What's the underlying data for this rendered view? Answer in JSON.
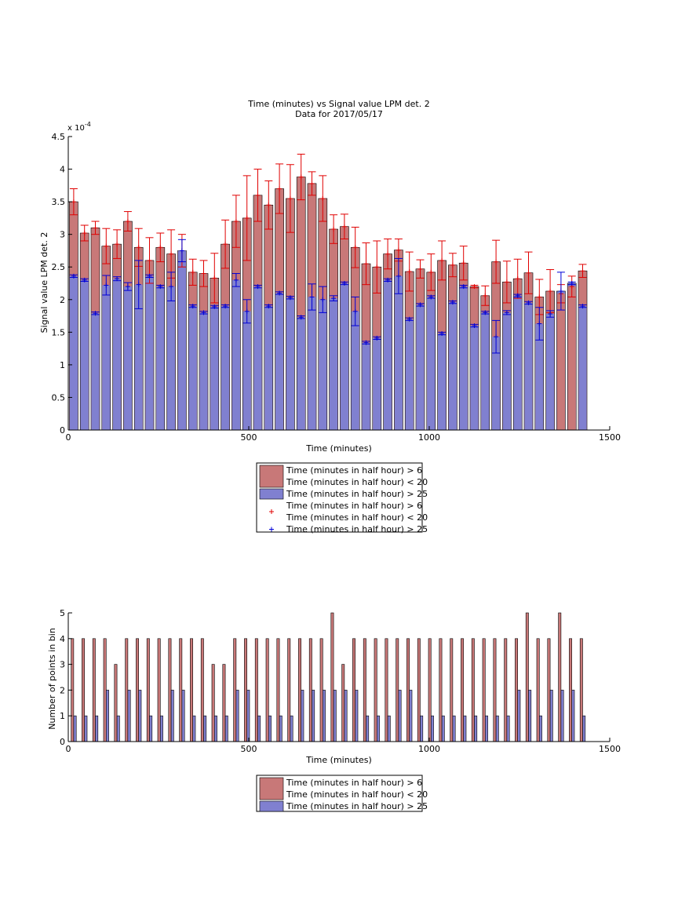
{
  "chart_data": [
    {
      "type": "bar",
      "title": "Time (minutes) vs Signal value LPM det. 2",
      "subtitle": "Data for 2017/05/17",
      "xlabel": "Time (minutes)",
      "ylabel": "Signal value LPM det. 2",
      "y_exponent_label": "x 10",
      "y_exponent": "-4",
      "xlim": [
        0,
        1500
      ],
      "ylim": [
        0,
        4.5
      ],
      "xticks": [
        0,
        500,
        1000,
        1500
      ],
      "yticks": [
        0,
        0.5,
        1,
        1.5,
        2,
        2.5,
        3,
        3.5,
        4,
        4.5
      ],
      "ytick_labels": [
        "0",
        "0.5",
        "1",
        "1.5",
        "2",
        "2.5",
        "3",
        "3.5",
        "4",
        "4.5"
      ],
      "grid": false,
      "legend_position": "below",
      "legend": [
        {
          "label_lines": [
            "Time (minutes in half hour) > 6",
            "Time (minutes in half hour) < 20"
          ],
          "marker": "red-bar"
        },
        {
          "label_lines": [
            "Time (minutes in half hour) > 25"
          ],
          "marker": "blue-bar"
        },
        {
          "label_lines": [
            "Time (minutes in half hour) > 6",
            "Time (minutes in half hour) < 20"
          ],
          "marker": "red-plus"
        },
        {
          "label_lines": [
            "Time (minutes in half hour) > 25"
          ],
          "marker": "blue-plus"
        }
      ],
      "x": [
        15,
        45,
        75,
        105,
        135,
        165,
        195,
        225,
        255,
        285,
        315,
        345,
        375,
        405,
        435,
        465,
        495,
        525,
        555,
        585,
        615,
        645,
        675,
        705,
        735,
        765,
        795,
        825,
        855,
        885,
        915,
        945,
        975,
        1005,
        1035,
        1065,
        1095,
        1125,
        1155,
        1185,
        1215,
        1245,
        1275,
        1305,
        1335,
        1365,
        1395,
        1425
      ],
      "series": [
        {
          "name": "Time (minutes in half hour) > 6 / Time (minutes in half hour) < 20",
          "color": "#c87878",
          "values": [
            3.5,
            3.02,
            3.1,
            2.82,
            2.85,
            3.2,
            2.8,
            2.6,
            2.8,
            2.7,
            2.75,
            2.42,
            2.4,
            2.33,
            2.85,
            3.2,
            3.25,
            3.6,
            3.45,
            3.7,
            3.55,
            3.88,
            3.78,
            3.55,
            3.08,
            3.12,
            2.8,
            2.55,
            2.5,
            2.7,
            2.76,
            2.43,
            2.47,
            2.42,
            2.6,
            2.53,
            2.56,
            2.2,
            2.06,
            2.58,
            2.27,
            2.32,
            2.41,
            2.04,
            2.13,
            2.09,
            2.2,
            2.44
          ],
          "error": [
            0.2,
            0.12,
            0.1,
            0.27,
            0.22,
            0.15,
            0.29,
            0.35,
            0.22,
            0.37,
            0.25,
            0.2,
            0.2,
            0.38,
            0.37,
            0.4,
            0.65,
            0.4,
            0.37,
            0.38,
            0.52,
            0.35,
            0.18,
            0.35,
            0.22,
            0.19,
            0.31,
            0.32,
            0.4,
            0.23,
            0.17,
            0.3,
            0.14,
            0.28,
            0.3,
            0.18,
            0.26,
            0.02,
            0.15,
            0.33,
            0.32,
            0.3,
            0.32,
            0.27,
            0.33,
            0.14,
            0.16,
            0.1
          ]
        },
        {
          "name": "Time (minutes in half hour) > 25",
          "color": "#8080d0",
          "values": [
            2.36,
            2.3,
            1.79,
            2.22,
            2.32,
            2.2,
            2.23,
            2.36,
            2.2,
            2.2,
            2.75,
            1.9,
            1.8,
            1.89,
            1.9,
            2.3,
            1.82,
            2.2,
            1.9,
            2.1,
            2.03,
            1.73,
            2.04,
            2.0,
            2.02,
            2.25,
            1.82,
            1.34,
            1.41,
            2.3,
            2.36,
            1.7,
            1.92,
            2.04,
            1.48,
            1.96,
            2.2,
            1.6,
            1.8,
            1.43,
            1.8,
            2.06,
            1.95,
            1.63,
            1.78,
            2.13,
            2.25,
            1.9
          ],
          "error": [
            0.02,
            0.02,
            0.02,
            0.15,
            0.03,
            0.06,
            0.37,
            0.02,
            0.02,
            0.22,
            0.17,
            0.02,
            0.02,
            0.02,
            0.02,
            0.1,
            0.18,
            0.02,
            0.02,
            0.02,
            0.02,
            0.02,
            0.2,
            0.2,
            0.04,
            0.02,
            0.22,
            0.02,
            0.02,
            0.02,
            0.27,
            0.02,
            0.02,
            0.02,
            0.02,
            0.02,
            0.02,
            0.02,
            0.02,
            0.25,
            0.03,
            0.02,
            0.02,
            0.25,
            0.05,
            0.29,
            0.02,
            0.02
          ]
        }
      ]
    },
    {
      "type": "bar",
      "title": "",
      "xlabel": "Time (minutes)",
      "ylabel": "Number of points in bin",
      "xlim": [
        0,
        1500
      ],
      "ylim": [
        0,
        5
      ],
      "xticks": [
        0,
        500,
        1000,
        1500
      ],
      "yticks": [
        0,
        1,
        2,
        3,
        4,
        5
      ],
      "grid": false,
      "legend_position": "below",
      "legend": [
        {
          "label_lines": [
            "Time (minutes in half hour) > 6",
            "Time (minutes in half hour) < 20"
          ],
          "marker": "red-bar"
        },
        {
          "label_lines": [
            "Time (minutes in half hour) > 25"
          ],
          "marker": "blue-bar"
        }
      ],
      "x": [
        15,
        45,
        75,
        105,
        135,
        165,
        195,
        225,
        255,
        285,
        315,
        345,
        375,
        405,
        435,
        465,
        495,
        525,
        555,
        585,
        615,
        645,
        675,
        705,
        735,
        765,
        795,
        825,
        855,
        885,
        915,
        945,
        975,
        1005,
        1035,
        1065,
        1095,
        1125,
        1155,
        1185,
        1215,
        1245,
        1275,
        1305,
        1335,
        1365,
        1395,
        1425
      ],
      "series": [
        {
          "name": "Time (minutes in half hour) > 6 / Time (minutes in half hour) < 20",
          "color": "#c87878",
          "values": [
            4,
            4,
            4,
            4,
            3,
            4,
            4,
            4,
            4,
            4,
            4,
            4,
            4,
            3,
            3,
            4,
            4,
            4,
            4,
            4,
            4,
            4,
            4,
            4,
            5,
            3,
            4,
            4,
            4,
            4,
            4,
            4,
            4,
            4,
            4,
            4,
            4,
            4,
            4,
            4,
            4,
            4,
            5,
            4,
            4,
            5,
            4,
            4
          ]
        },
        {
          "name": "Time (minutes in half hour) > 25",
          "color": "#8080d0",
          "values": [
            1,
            1,
            1,
            2,
            1,
            2,
            2,
            1,
            1,
            2,
            2,
            1,
            1,
            1,
            1,
            2,
            2,
            1,
            1,
            1,
            1,
            2,
            2,
            2,
            2,
            2,
            2,
            1,
            1,
            1,
            2,
            2,
            1,
            1,
            1,
            1,
            1,
            1,
            1,
            1,
            1,
            2,
            2,
            1,
            2,
            2,
            2,
            1
          ]
        }
      ]
    }
  ]
}
